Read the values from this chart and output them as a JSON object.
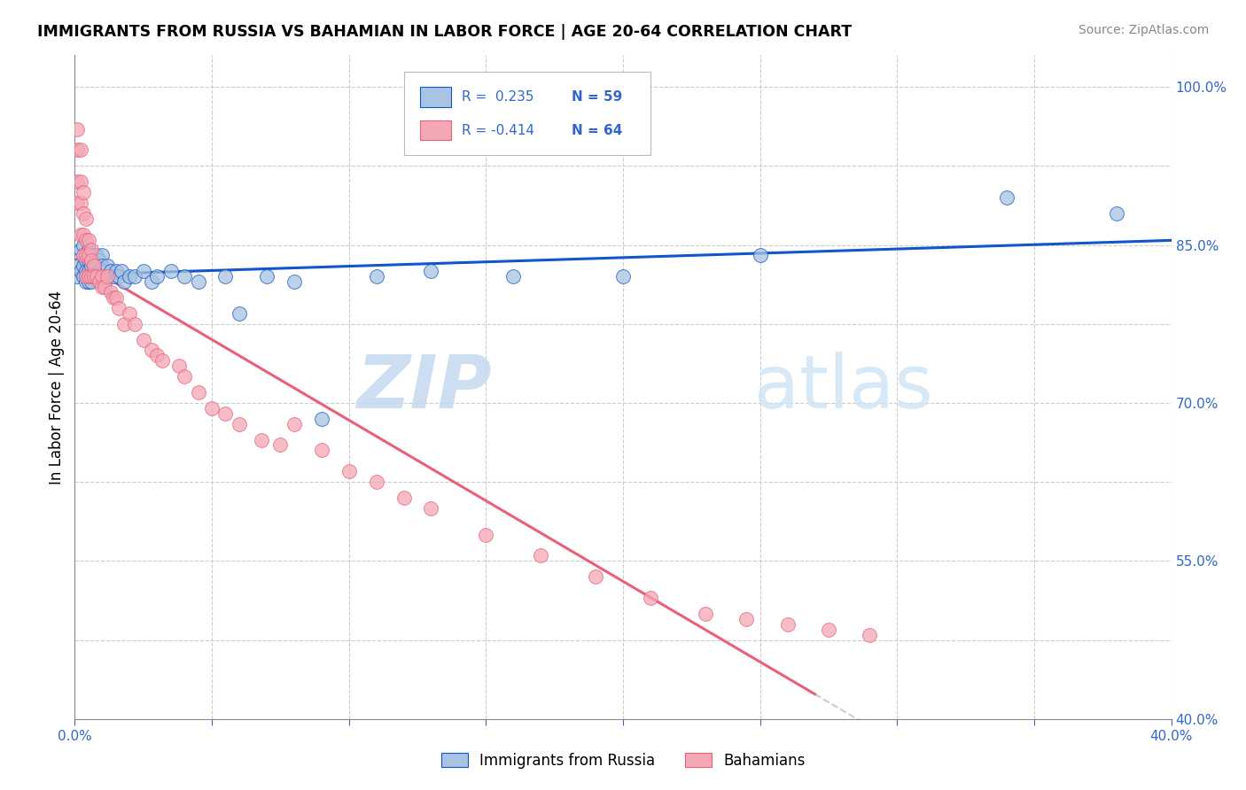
{
  "title": "IMMIGRANTS FROM RUSSIA VS BAHAMIAN IN LABOR FORCE | AGE 20-64 CORRELATION CHART",
  "source": "Source: ZipAtlas.com",
  "ylabel": "In Labor Force | Age 20-64",
  "xlim": [
    0.0,
    0.4
  ],
  "ylim": [
    0.4,
    1.03
  ],
  "x_ticks": [
    0.0,
    0.05,
    0.1,
    0.15,
    0.2,
    0.25,
    0.3,
    0.35,
    0.4
  ],
  "y_ticks": [
    0.4,
    0.475,
    0.55,
    0.625,
    0.7,
    0.775,
    0.85,
    0.925,
    1.0
  ],
  "blue_color": "#A8C4E0",
  "pink_color": "#F4A7B5",
  "line_blue": "#1155CC",
  "line_pink": "#E8607A",
  "watermark_zip": "ZIP",
  "watermark_atlas": "atlas",
  "russia_x": [
    0.001,
    0.001,
    0.002,
    0.002,
    0.003,
    0.003,
    0.003,
    0.003,
    0.004,
    0.004,
    0.004,
    0.005,
    0.005,
    0.005,
    0.005,
    0.005,
    0.006,
    0.006,
    0.006,
    0.006,
    0.007,
    0.007,
    0.007,
    0.008,
    0.008,
    0.008,
    0.009,
    0.009,
    0.01,
    0.01,
    0.011,
    0.011,
    0.012,
    0.013,
    0.014,
    0.015,
    0.016,
    0.017,
    0.018,
    0.02,
    0.022,
    0.025,
    0.028,
    0.03,
    0.035,
    0.04,
    0.045,
    0.055,
    0.06,
    0.07,
    0.08,
    0.09,
    0.11,
    0.13,
    0.16,
    0.2,
    0.25,
    0.34,
    0.38
  ],
  "russia_y": [
    0.82,
    0.83,
    0.845,
    0.825,
    0.85,
    0.84,
    0.83,
    0.82,
    0.835,
    0.825,
    0.815,
    0.845,
    0.835,
    0.825,
    0.82,
    0.815,
    0.84,
    0.83,
    0.82,
    0.815,
    0.84,
    0.83,
    0.82,
    0.84,
    0.83,
    0.82,
    0.835,
    0.825,
    0.84,
    0.83,
    0.825,
    0.815,
    0.83,
    0.825,
    0.82,
    0.825,
    0.82,
    0.825,
    0.815,
    0.82,
    0.82,
    0.825,
    0.815,
    0.82,
    0.825,
    0.82,
    0.815,
    0.82,
    0.785,
    0.82,
    0.815,
    0.685,
    0.82,
    0.825,
    0.82,
    0.82,
    0.84,
    0.895,
    0.88
  ],
  "bahama_x": [
    0.001,
    0.001,
    0.001,
    0.001,
    0.002,
    0.002,
    0.002,
    0.002,
    0.003,
    0.003,
    0.003,
    0.003,
    0.004,
    0.004,
    0.004,
    0.004,
    0.005,
    0.005,
    0.005,
    0.006,
    0.006,
    0.006,
    0.007,
    0.007,
    0.008,
    0.009,
    0.01,
    0.01,
    0.011,
    0.012,
    0.013,
    0.014,
    0.015,
    0.016,
    0.018,
    0.02,
    0.022,
    0.025,
    0.028,
    0.03,
    0.032,
    0.038,
    0.04,
    0.045,
    0.05,
    0.055,
    0.06,
    0.068,
    0.075,
    0.08,
    0.09,
    0.1,
    0.11,
    0.12,
    0.13,
    0.15,
    0.17,
    0.19,
    0.21,
    0.23,
    0.245,
    0.26,
    0.275,
    0.29
  ],
  "bahama_y": [
    0.96,
    0.94,
    0.91,
    0.89,
    0.94,
    0.91,
    0.89,
    0.86,
    0.9,
    0.88,
    0.86,
    0.84,
    0.875,
    0.855,
    0.84,
    0.82,
    0.855,
    0.84,
    0.82,
    0.845,
    0.835,
    0.82,
    0.83,
    0.82,
    0.82,
    0.815,
    0.82,
    0.81,
    0.81,
    0.82,
    0.805,
    0.8,
    0.8,
    0.79,
    0.775,
    0.785,
    0.775,
    0.76,
    0.75,
    0.745,
    0.74,
    0.735,
    0.725,
    0.71,
    0.695,
    0.69,
    0.68,
    0.665,
    0.66,
    0.68,
    0.655,
    0.635,
    0.625,
    0.61,
    0.6,
    0.575,
    0.555,
    0.535,
    0.515,
    0.5,
    0.495,
    0.49,
    0.485,
    0.48
  ]
}
